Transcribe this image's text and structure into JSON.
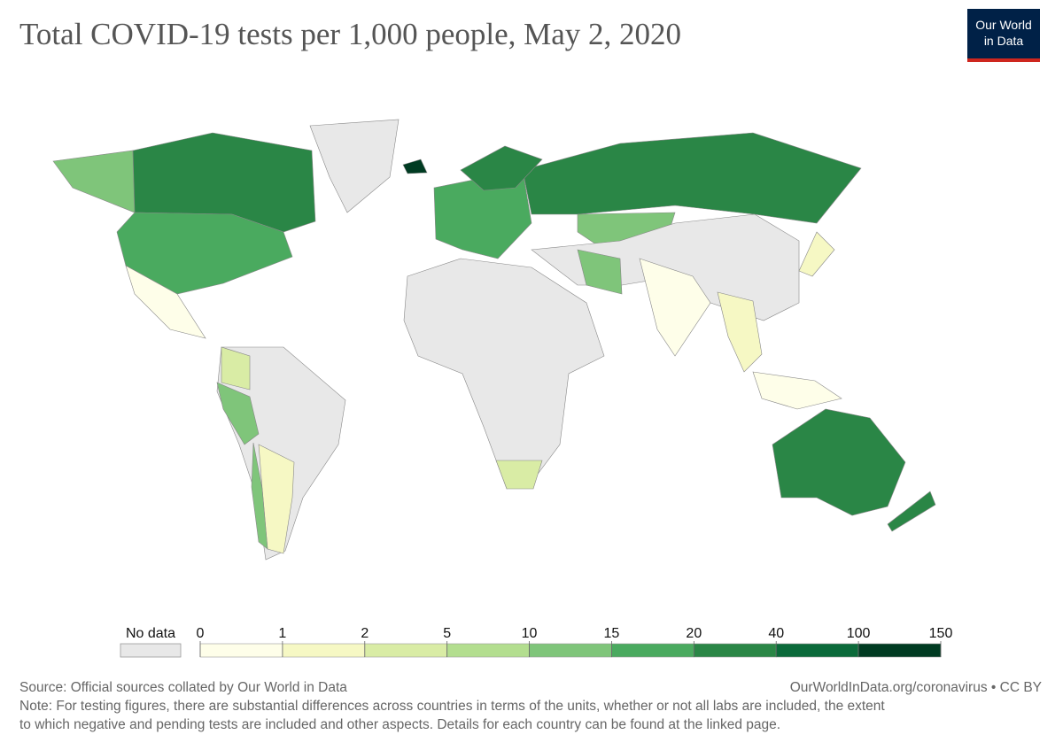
{
  "header": {
    "title": "Total COVID-19 tests per 1,000 people, May 2, 2020",
    "logo": [
      "Our World",
      "in Data"
    ]
  },
  "legend": {
    "no_data_label": "No data",
    "no_data_color": "#e8e8e8",
    "bins": [
      0,
      1,
      2,
      5,
      10,
      15,
      20,
      40,
      100,
      150
    ],
    "colors": [
      "#fefee9",
      "#f6f8c4",
      "#d9eca5",
      "#b3de8f",
      "#7fc57a",
      "#4aaa5f",
      "#2a8646",
      "#0b6a3a",
      "#003b22"
    ]
  },
  "footer": {
    "source": "Source: Official sources collated by Our World in Data",
    "url": "OurWorldInData.org/coronavirus • CC BY",
    "note": [
      "Note: For testing figures, there are substantial differences across countries in terms of the units, whether or not all labs are included, the extent",
      "to which negative and pending tests are included and other aspects. Details for each country can be found at the linked page."
    ]
  }
}
